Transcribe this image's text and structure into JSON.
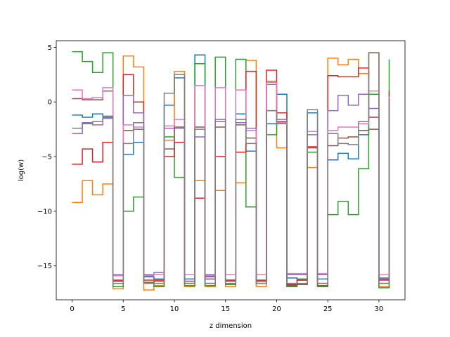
{
  "chart_data": {
    "type": "line",
    "drawstyle": "steps-post",
    "title": "",
    "xlabel": "z dimension",
    "ylabel": "log(w)",
    "xlim": [
      -1.55,
      32.55
    ],
    "ylim": [
      -18.1,
      5.6
    ],
    "xticks": [
      0,
      5,
      10,
      15,
      20,
      25,
      30
    ],
    "yticks": [
      5,
      0,
      -5,
      -10,
      -15
    ],
    "ytick_labels": [
      "5",
      "0",
      "−5",
      "−10",
      "−15"
    ],
    "grid": false,
    "legend": "none",
    "x": [
      0,
      1,
      2,
      3,
      4,
      5,
      6,
      7,
      8,
      9,
      10,
      11,
      12,
      13,
      14,
      15,
      16,
      17,
      18,
      19,
      20,
      21,
      22,
      23,
      24,
      25,
      26,
      27,
      28,
      29,
      30,
      31
    ],
    "series": [
      {
        "color": "#1f77b4",
        "values": [
          -1.2,
          -1.4,
          -1.1,
          -1.4,
          -16.4,
          -4.8,
          -3.7,
          -16.0,
          -16.2,
          -0.3,
          2.2,
          -16.2,
          4.3,
          -16.0,
          -1.8,
          -16.3,
          -1.1,
          -4.5,
          -16.4,
          -2.0,
          0.7,
          -16.1,
          -16.3,
          -1.0,
          -16.2,
          -5.3,
          -4.7,
          -5.2,
          -3.0,
          4.5,
          -16.2,
          -0.3
        ]
      },
      {
        "color": "#ff7f0e",
        "values": [
          -9.2,
          -7.2,
          -8.5,
          -7.5,
          -17.1,
          4.2,
          3.2,
          -17.2,
          -16.8,
          -3.5,
          2.8,
          -16.9,
          -7.2,
          -16.9,
          -8.1,
          -16.9,
          -7.4,
          3.8,
          -16.9,
          1.9,
          -4.2,
          -16.9,
          -16.7,
          -6.0,
          -16.8,
          4.0,
          3.4,
          3.9,
          2.6,
          4.5,
          -16.9,
          -2.4
        ]
      },
      {
        "color": "#2ca02c",
        "values": [
          4.6,
          3.7,
          2.7,
          4.5,
          -16.9,
          -10.0,
          -8.7,
          -16.5,
          -16.9,
          -3.2,
          -6.9,
          -16.8,
          3.5,
          -16.8,
          4.1,
          -16.7,
          3.9,
          -9.6,
          -16.6,
          -3.0,
          -1.9,
          -16.9,
          -16.2,
          -4.6,
          -16.9,
          -10.3,
          -9.1,
          -10.3,
          -6.1,
          0.7,
          -17.0,
          3.9
        ]
      },
      {
        "color": "#d62728",
        "values": [
          -5.7,
          -4.3,
          -5.5,
          -3.7,
          -16.3,
          2.5,
          0.0,
          -16.3,
          -16.3,
          -5.0,
          -3.7,
          -16.6,
          -8.8,
          -16.2,
          -5.0,
          -16.3,
          -4.6,
          2.8,
          -16.3,
          2.9,
          -1.0,
          -16.7,
          -16.3,
          -4.1,
          -16.6,
          2.4,
          2.3,
          2.3,
          3.1,
          -1.4,
          -16.3,
          1.0
        ]
      },
      {
        "color": "#9467bd",
        "values": [
          -2.9,
          -1.9,
          -2.1,
          -1.5,
          -15.8,
          0.6,
          -1.0,
          -15.8,
          -15.6,
          -2.4,
          -2.4,
          -15.8,
          -3.2,
          -15.8,
          -1.8,
          -15.8,
          -1.9,
          -2.4,
          -15.8,
          1.6,
          -1.6,
          -15.8,
          -15.8,
          -3.0,
          -15.8,
          -0.8,
          0.6,
          -0.3,
          0.7,
          -0.6,
          -16.1,
          0.6
        ]
      },
      {
        "color": "#8c564b",
        "values": [
          0.3,
          0.2,
          0.2,
          1.0,
          -16.4,
          -2.6,
          -2.5,
          -16.5,
          -16.4,
          -4.3,
          -2.3,
          -16.4,
          -2.3,
          -16.6,
          -2.3,
          -16.4,
          -2.1,
          -3.3,
          -16.4,
          -0.8,
          -1.8,
          -16.8,
          -16.7,
          -4.2,
          -16.8,
          -4.0,
          -3.3,
          -3.2,
          -2.6,
          -2.5,
          -16.6,
          1.0
        ]
      },
      {
        "color": "#e377c2",
        "values": [
          1.1,
          0.3,
          0.4,
          1.3,
          -15.9,
          -2.1,
          -2.3,
          -15.9,
          -15.8,
          -2.2,
          -1.6,
          -15.8,
          1.5,
          -15.9,
          1.3,
          -15.8,
          1.1,
          -2.6,
          -15.8,
          1.8,
          -1.9,
          -15.7,
          -15.7,
          -2.7,
          -15.7,
          -2.6,
          -2.3,
          -2.3,
          -2.0,
          1.0,
          -15.8,
          0.5
        ]
      },
      {
        "color": "#7f7f7f",
        "values": [
          -2.4,
          -2.0,
          -1.8,
          -1.3,
          -16.6,
          -3.8,
          -1.9,
          -16.6,
          -16.6,
          0.8,
          2.5,
          -16.6,
          -2.5,
          -16.6,
          -1.6,
          -16.6,
          -1.6,
          -3.8,
          -16.6,
          -0.8,
          -2.0,
          -16.6,
          -16.6,
          -0.7,
          -16.6,
          -2.9,
          -3.8,
          -3.9,
          -1.8,
          4.5,
          -16.6,
          0.3
        ]
      }
    ]
  }
}
